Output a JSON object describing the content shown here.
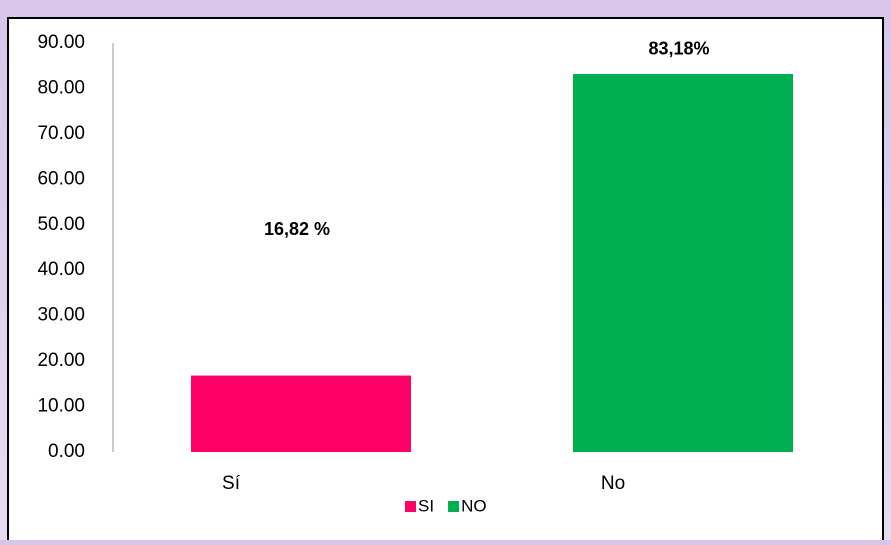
{
  "chart_data": {
    "type": "bar",
    "categories": [
      "Sí",
      "No"
    ],
    "series": [
      {
        "name": "SI",
        "color": "#ff0066",
        "values": [
          16.82,
          null
        ],
        "value_labels": [
          "16,82 %",
          null
        ]
      },
      {
        "name": "NO",
        "color": "#00b050",
        "values": [
          null,
          83.18
        ],
        "value_labels": [
          null,
          "83,18%"
        ]
      }
    ],
    "ylim": [
      0,
      90
    ],
    "yticks": [
      {
        "value": 0,
        "label": "0.00"
      },
      {
        "value": 10,
        "label": "10.00"
      },
      {
        "value": 20,
        "label": "20.00"
      },
      {
        "value": 30,
        "label": "30.00"
      },
      {
        "value": 40,
        "label": "40.00"
      },
      {
        "value": 50,
        "label": "50.00"
      },
      {
        "value": 60,
        "label": "60.00"
      },
      {
        "value": 70,
        "label": "70.00"
      },
      {
        "value": 80,
        "label": "80.00"
      },
      {
        "value": 90,
        "label": "90.00"
      }
    ],
    "grid": false,
    "legend": "bottom"
  }
}
